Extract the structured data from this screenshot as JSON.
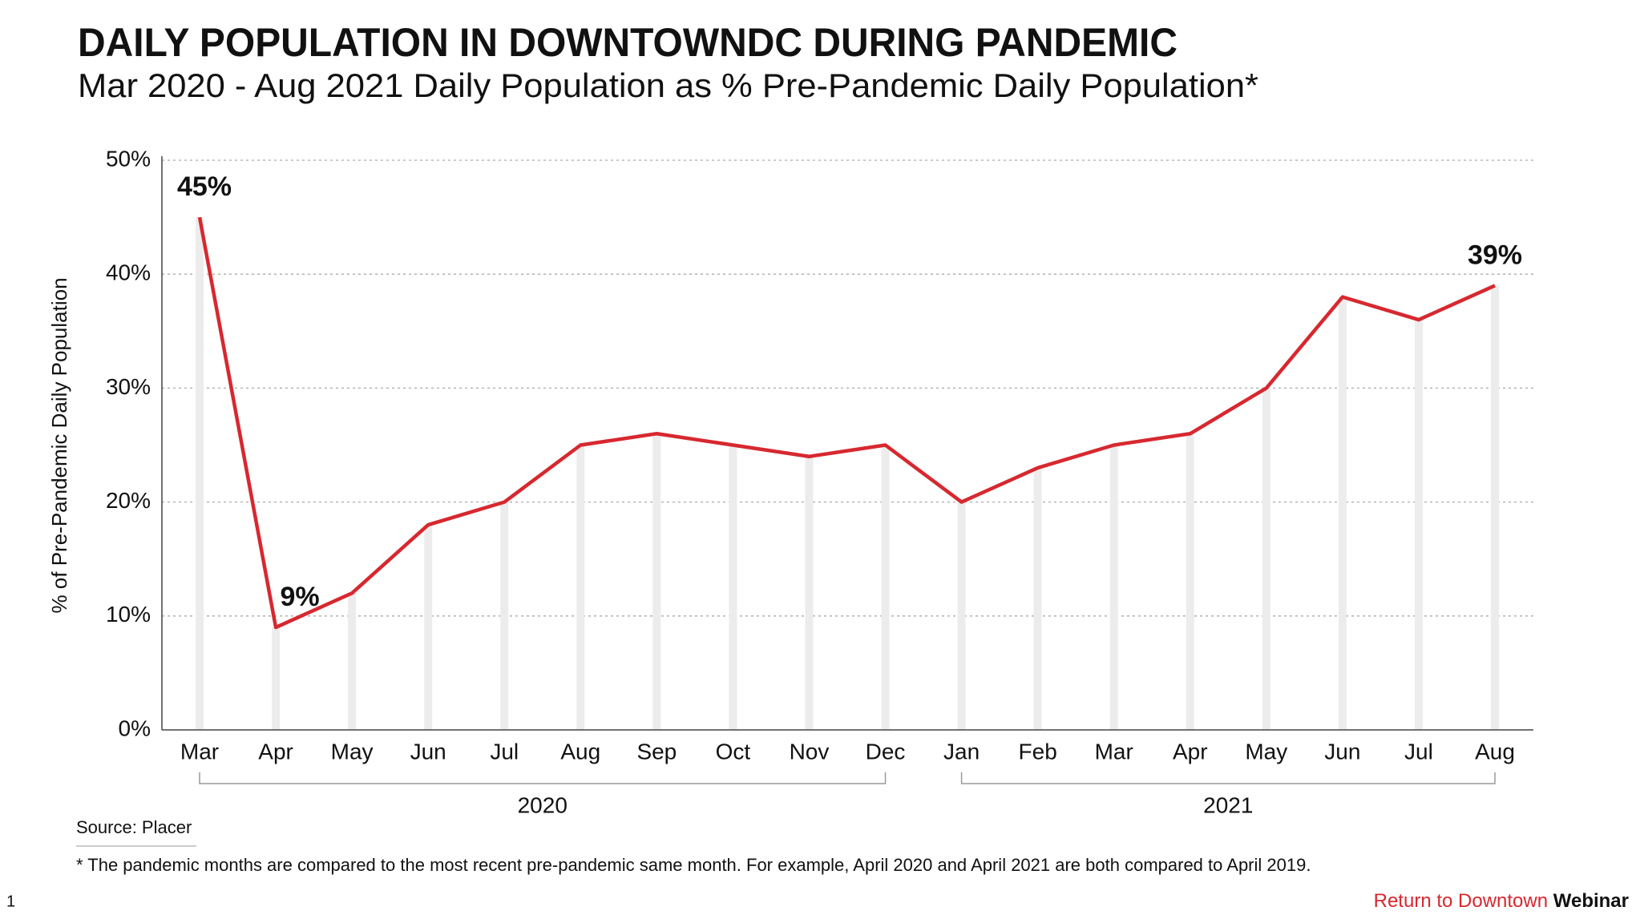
{
  "chart_data": {
    "type": "line",
    "title": "DAILY POPULATION IN DOWNTOWNDC DURING PANDEMIC",
    "subtitle": "Mar 2020 - Aug 2021 Daily Population as % Pre-Pandemic Daily Population*",
    "y_label": "% of Pre-Pandemic Daily Population",
    "categories": [
      "Mar",
      "Apr",
      "May",
      "Jun",
      "Jul",
      "Aug",
      "Sep",
      "Oct",
      "Nov",
      "Dec",
      "Jan",
      "Feb",
      "Mar",
      "Apr",
      "May",
      "Jun",
      "Jul",
      "Aug"
    ],
    "groups": [
      {
        "label": "2020",
        "count": 10
      },
      {
        "label": "2021",
        "count": 8
      }
    ],
    "values": [
      45,
      9,
      12,
      18,
      20,
      25,
      26,
      25,
      24,
      25,
      20,
      23,
      25,
      26,
      30,
      38,
      36,
      39
    ],
    "value_labels": [
      "45%",
      "9%",
      null,
      null,
      null,
      null,
      null,
      null,
      null,
      null,
      null,
      null,
      null,
      null,
      null,
      null,
      null,
      "39%"
    ],
    "color": "#d7282f",
    "ylim": [
      0,
      50
    ],
    "yticks": [
      {
        "value": 0,
        "label": "0%"
      },
      {
        "value": 10,
        "label": "10%"
      },
      {
        "value": 20,
        "label": "20%"
      },
      {
        "value": 30,
        "label": "30%"
      },
      {
        "value": 40,
        "label": "40%"
      },
      {
        "value": 50,
        "label": "50%"
      }
    ],
    "grid": true,
    "source": "Source: Placer",
    "footnote": "* The pandemic months are compared to the most recent pre-pandemic same month. For example, April 2020 and April 2021 are both compared to April 2019."
  },
  "page_number": "1",
  "brand": {
    "highlight": "Return to Downtown",
    "rest": "Webinar"
  }
}
